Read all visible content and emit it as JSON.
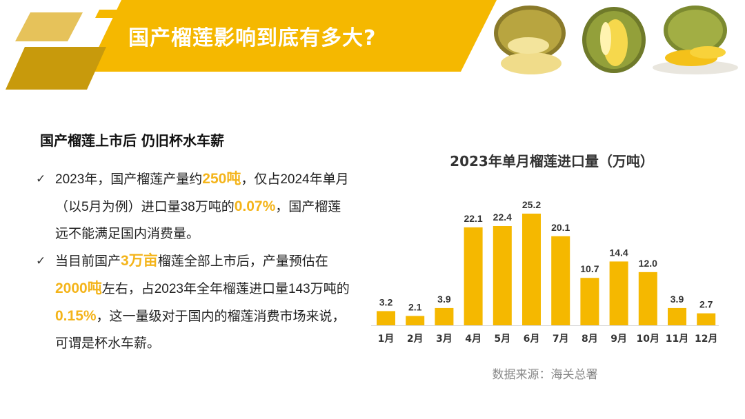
{
  "header": {
    "title": "国产榴莲影响到底有多大?",
    "colors": {
      "yellow": "#f5b800",
      "dark_gold": "#c89a0c",
      "light_gold": "#e6c25a"
    },
    "images": [
      "durian-half-icon",
      "durian-open-icon",
      "durian-plate-icon"
    ]
  },
  "section": {
    "subheading": "国产榴莲上市后 仍旧杯水车薪",
    "bullets": [
      {
        "parts": [
          {
            "text": "2023年，国产榴莲产量约",
            "hl": false
          },
          {
            "text": "250吨",
            "hl": true
          },
          {
            "text": "，仅占2024年单月（以5月为例）进口量38万吨的",
            "hl": false
          },
          {
            "text": "0.07%",
            "hl": true
          },
          {
            "text": "，国产榴莲远不能满足国内消费量。",
            "hl": false
          }
        ]
      },
      {
        "parts": [
          {
            "text": "当目前国产",
            "hl": false
          },
          {
            "text": "3万亩",
            "hl": true
          },
          {
            "text": "榴莲全部上市后，产量预估在",
            "hl": false
          },
          {
            "text": "2000吨",
            "hl": true
          },
          {
            "text": "左右，占2023年全年榴莲进口量143万吨的",
            "hl": false
          },
          {
            "text": "0.15%",
            "hl": true
          },
          {
            "text": "，这一量级对于国内的榴莲消费市场来说，可谓是杯水车薪。",
            "hl": false
          }
        ]
      }
    ]
  },
  "chart_data": {
    "type": "bar",
    "title": "2023年单月榴莲进口量（万吨）",
    "categories": [
      "1月",
      "2月",
      "3月",
      "4月",
      "5月",
      "6月",
      "7月",
      "8月",
      "9月",
      "10月",
      "11月",
      "12月"
    ],
    "values": [
      3.2,
      2.1,
      3.9,
      22.1,
      22.4,
      25.2,
      20.1,
      10.7,
      14.4,
      12.0,
      3.9,
      2.7
    ],
    "value_labels": [
      "3.2",
      "2.1",
      "3.9",
      "22.1",
      "22.4",
      "25.2",
      "20.1",
      "10.7",
      "14.4",
      "12.0",
      "3.9",
      "2.7"
    ],
    "ylim": [
      0,
      25.2
    ],
    "bar_color": "#f5b800",
    "grid": false,
    "xlabel": "",
    "ylabel": ""
  },
  "source": "数据来源：海关总署"
}
